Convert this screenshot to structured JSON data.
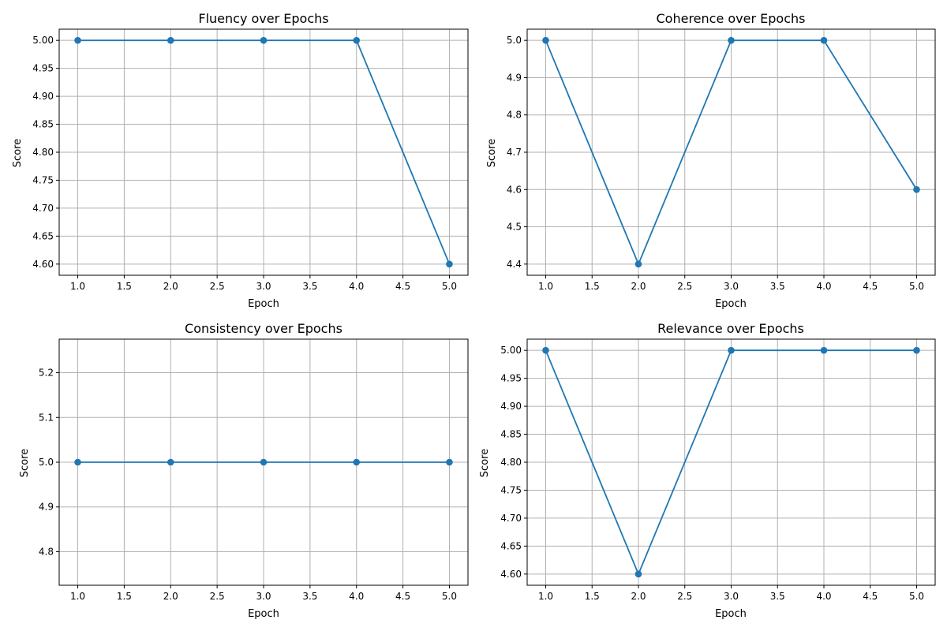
{
  "chart_data": [
    {
      "type": "line",
      "title": "Fluency over Epochs",
      "xlabel": "Epoch",
      "ylabel": "Score",
      "x": [
        1,
        2,
        3,
        4,
        5
      ],
      "series": [
        {
          "values": [
            5.0,
            5.0,
            5.0,
            5.0,
            4.6
          ],
          "color": "#1f77b4",
          "marker": "circle"
        }
      ],
      "xlim": [
        0.8,
        5.2
      ],
      "ylim": [
        4.58,
        5.02
      ],
      "xticks": [
        1.0,
        1.5,
        2.0,
        2.5,
        3.0,
        3.5,
        4.0,
        4.5,
        5.0
      ],
      "xtick_labels": [
        "1.0",
        "1.5",
        "2.0",
        "2.5",
        "3.0",
        "3.5",
        "4.0",
        "4.5",
        "5.0"
      ],
      "yticks": [
        4.6,
        4.65,
        4.7,
        4.75,
        4.8,
        4.85,
        4.9,
        4.95,
        5.0
      ],
      "ytick_labels": [
        "4.60",
        "4.65",
        "4.70",
        "4.75",
        "4.80",
        "4.85",
        "4.90",
        "4.95",
        "5.00"
      ],
      "grid": true
    },
    {
      "type": "line",
      "title": "Coherence over Epochs",
      "xlabel": "Epoch",
      "ylabel": "Score",
      "x": [
        1,
        2,
        3,
        4,
        5
      ],
      "series": [
        {
          "values": [
            5.0,
            4.4,
            5.0,
            5.0,
            4.6
          ],
          "color": "#1f77b4",
          "marker": "circle"
        }
      ],
      "xlim": [
        0.8,
        5.2
      ],
      "ylim": [
        4.37,
        5.03
      ],
      "xticks": [
        1.0,
        1.5,
        2.0,
        2.5,
        3.0,
        3.5,
        4.0,
        4.5,
        5.0
      ],
      "xtick_labels": [
        "1.0",
        "1.5",
        "2.0",
        "2.5",
        "3.0",
        "3.5",
        "4.0",
        "4.5",
        "5.0"
      ],
      "yticks": [
        4.4,
        4.5,
        4.6,
        4.7,
        4.8,
        4.9,
        5.0
      ],
      "ytick_labels": [
        "4.4",
        "4.5",
        "4.6",
        "4.7",
        "4.8",
        "4.9",
        "5.0"
      ],
      "grid": true
    },
    {
      "type": "line",
      "title": "Consistency over Epochs",
      "xlabel": "Epoch",
      "ylabel": "Score",
      "x": [
        1,
        2,
        3,
        4,
        5
      ],
      "series": [
        {
          "values": [
            5.0,
            5.0,
            5.0,
            5.0,
            5.0
          ],
          "color": "#1f77b4",
          "marker": "circle"
        }
      ],
      "xlim": [
        0.8,
        5.2
      ],
      "ylim": [
        4.725,
        5.275
      ],
      "xticks": [
        1.0,
        1.5,
        2.0,
        2.5,
        3.0,
        3.5,
        4.0,
        4.5,
        5.0
      ],
      "xtick_labels": [
        "1.0",
        "1.5",
        "2.0",
        "2.5",
        "3.0",
        "3.5",
        "4.0",
        "4.5",
        "5.0"
      ],
      "yticks": [
        4.8,
        4.9,
        5.0,
        5.1,
        5.2
      ],
      "ytick_labels": [
        "4.8",
        "4.9",
        "5.0",
        "5.1",
        "5.2"
      ],
      "grid": true
    },
    {
      "type": "line",
      "title": "Relevance over Epochs",
      "xlabel": "Epoch",
      "ylabel": "Score",
      "x": [
        1,
        2,
        3,
        4,
        5
      ],
      "series": [
        {
          "values": [
            5.0,
            4.6,
            5.0,
            5.0,
            5.0
          ],
          "color": "#1f77b4",
          "marker": "circle"
        }
      ],
      "xlim": [
        0.8,
        5.2
      ],
      "ylim": [
        4.58,
        5.02
      ],
      "xticks": [
        1.0,
        1.5,
        2.0,
        2.5,
        3.0,
        3.5,
        4.0,
        4.5,
        5.0
      ],
      "xtick_labels": [
        "1.0",
        "1.5",
        "2.0",
        "2.5",
        "3.0",
        "3.5",
        "4.0",
        "4.5",
        "5.0"
      ],
      "yticks": [
        4.6,
        4.65,
        4.7,
        4.75,
        4.8,
        4.85,
        4.9,
        4.95,
        5.0
      ],
      "ytick_labels": [
        "4.60",
        "4.65",
        "4.70",
        "4.75",
        "4.80",
        "4.85",
        "4.90",
        "4.95",
        "5.00"
      ],
      "grid": true
    }
  ]
}
